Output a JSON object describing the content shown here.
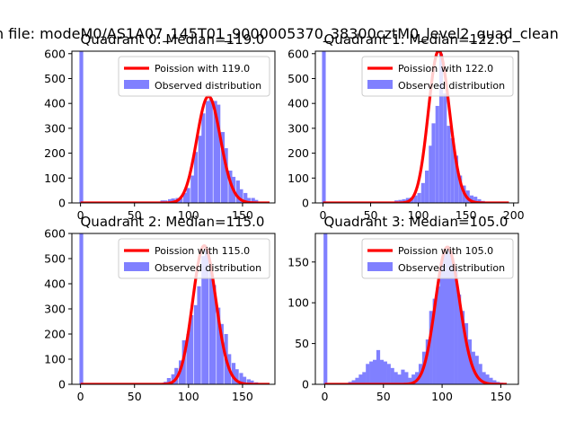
{
  "figure": {
    "suptitle": "n file: modeM0/AS1A07_145T01_9000005370_38300cztM0_level2_quad_clean"
  },
  "colors": {
    "hist": "#8080ff",
    "poisson": "#ff0000",
    "axis": "#000000"
  },
  "chart_data": [
    {
      "type": "bar",
      "title": "Quadrant 0: Median=119.0",
      "xlim": [
        -8,
        180
      ],
      "ylim": [
        0,
        610
      ],
      "xticks": [
        0,
        50,
        100,
        150
      ],
      "yticks": [
        0,
        100,
        200,
        300,
        400,
        500,
        600
      ],
      "legend_loc": "upper right",
      "legend": [
        "Poission with 119.0",
        "Observed distribution"
      ],
      "bin_width": 3.5,
      "bins": [
        [
          -1,
          612
        ],
        [
          63,
          2
        ],
        [
          70,
          5
        ],
        [
          74,
          10
        ],
        [
          77,
          10
        ],
        [
          81,
          15
        ],
        [
          84,
          18
        ],
        [
          88,
          20
        ],
        [
          91,
          18
        ],
        [
          95,
          40
        ],
        [
          98,
          60
        ],
        [
          102,
          110
        ],
        [
          105,
          205
        ],
        [
          109,
          270
        ],
        [
          112,
          360
        ],
        [
          116,
          410
        ],
        [
          119,
          420
        ],
        [
          123,
          410
        ],
        [
          126,
          395
        ],
        [
          130,
          285
        ],
        [
          133,
          220
        ],
        [
          137,
          130
        ],
        [
          140,
          105
        ],
        [
          144,
          90
        ],
        [
          147,
          55
        ],
        [
          151,
          40
        ],
        [
          154,
          20
        ],
        [
          158,
          20
        ],
        [
          161,
          12
        ],
        [
          165,
          5
        ],
        [
          168,
          2
        ],
        [
          172,
          1
        ]
      ],
      "poisson_mean": 119.0,
      "curve_xrange": [
        0,
        175
      ]
    },
    {
      "type": "bar",
      "title": "Quadrant 1: Median=122.0",
      "xlim": [
        -8,
        205
      ],
      "ylim": [
        0,
        610
      ],
      "xticks": [
        0,
        50,
        100,
        150,
        200
      ],
      "yticks": [
        0,
        100,
        200,
        300,
        400,
        500,
        600
      ],
      "legend_loc": "upper right",
      "legend": [
        "Poission with 122.0",
        "Observed distribution"
      ],
      "bin_width": 3.9,
      "bins": [
        [
          -1,
          612
        ],
        [
          71,
          5
        ],
        [
          75,
          10
        ],
        [
          79,
          12
        ],
        [
          83,
          15
        ],
        [
          87,
          20
        ],
        [
          91,
          22
        ],
        [
          95,
          30
        ],
        [
          99,
          40
        ],
        [
          103,
          80
        ],
        [
          107,
          130
        ],
        [
          111,
          230
        ],
        [
          114,
          320
        ],
        [
          118,
          390
        ],
        [
          122,
          600
        ],
        [
          126,
          440
        ],
        [
          130,
          310
        ],
        [
          134,
          260
        ],
        [
          138,
          190
        ],
        [
          142,
          110
        ],
        [
          146,
          70
        ],
        [
          150,
          50
        ],
        [
          154,
          30
        ],
        [
          158,
          25
        ],
        [
          162,
          15
        ],
        [
          166,
          8
        ],
        [
          170,
          5
        ],
        [
          174,
          3
        ],
        [
          178,
          2
        ],
        [
          185,
          1
        ],
        [
          193,
          1
        ]
      ],
      "poisson_mean": 122.0,
      "curve_xrange": [
        0,
        195
      ]
    },
    {
      "type": "bar",
      "title": "Quadrant 2: Median=115.0",
      "xlim": [
        -8,
        180
      ],
      "ylim": [
        0,
        600
      ],
      "xticks": [
        0,
        50,
        100,
        150
      ],
      "yticks": [
        0,
        100,
        200,
        300,
        400,
        500,
        600
      ],
      "legend_loc": "upper right",
      "legend": [
        "Poission with 115.0",
        "Observed distribution"
      ],
      "bin_width": 3.5,
      "bins": [
        [
          -1,
          612
        ],
        [
          73,
          5
        ],
        [
          77,
          10
        ],
        [
          80,
          25
        ],
        [
          84,
          40
        ],
        [
          87,
          65
        ],
        [
          91,
          95
        ],
        [
          94,
          175
        ],
        [
          98,
          200
        ],
        [
          101,
          275
        ],
        [
          105,
          315
        ],
        [
          108,
          390
        ],
        [
          112,
          510
        ],
        [
          115,
          540
        ],
        [
          119,
          450
        ],
        [
          122,
          395
        ],
        [
          126,
          305
        ],
        [
          129,
          240
        ],
        [
          133,
          200
        ],
        [
          136,
          120
        ],
        [
          140,
          85
        ],
        [
          143,
          60
        ],
        [
          147,
          45
        ],
        [
          150,
          30
        ],
        [
          154,
          20
        ],
        [
          157,
          15
        ],
        [
          161,
          8
        ],
        [
          164,
          5
        ],
        [
          168,
          3
        ],
        [
          171,
          2
        ],
        [
          175,
          1
        ]
      ],
      "poisson_mean": 115.0,
      "curve_xrange": [
        0,
        175
      ]
    },
    {
      "type": "bar",
      "title": "Quadrant 3: Median=105.0",
      "xlim": [
        -8,
        165
      ],
      "ylim": [
        0,
        185
      ],
      "xticks": [
        0,
        50,
        100,
        150
      ],
      "yticks": [
        0,
        50,
        100,
        150
      ],
      "legend_loc": "upper right",
      "legend": [
        "Poission with 105.0",
        "Observed distribution"
      ],
      "bin_width": 3.2,
      "bins": [
        [
          -1,
          185
        ],
        [
          20,
          3
        ],
        [
          23,
          5
        ],
        [
          26,
          8
        ],
        [
          29,
          12
        ],
        [
          32,
          15
        ],
        [
          35,
          25
        ],
        [
          38,
          28
        ],
        [
          41,
          30
        ],
        [
          44,
          42
        ],
        [
          47,
          30
        ],
        [
          50,
          28
        ],
        [
          53,
          25
        ],
        [
          56,
          20
        ],
        [
          59,
          15
        ],
        [
          62,
          12
        ],
        [
          65,
          18
        ],
        [
          68,
          15
        ],
        [
          71,
          8
        ],
        [
          74,
          12
        ],
        [
          77,
          15
        ],
        [
          80,
          25
        ],
        [
          83,
          40
        ],
        [
          86,
          55
        ],
        [
          89,
          90
        ],
        [
          92,
          105
        ],
        [
          95,
          120
        ],
        [
          98,
          150
        ],
        [
          101,
          160
        ],
        [
          104,
          165
        ],
        [
          107,
          155
        ],
        [
          110,
          140
        ],
        [
          113,
          110
        ],
        [
          116,
          90
        ],
        [
          119,
          75
        ],
        [
          122,
          55
        ],
        [
          125,
          40
        ],
        [
          128,
          35
        ],
        [
          131,
          25
        ],
        [
          134,
          15
        ],
        [
          137,
          12
        ],
        [
          140,
          8
        ],
        [
          143,
          5
        ],
        [
          146,
          3
        ],
        [
          149,
          2
        ],
        [
          152,
          1
        ]
      ],
      "poisson_mean": 105.0,
      "curve_xrange": [
        0,
        155
      ]
    }
  ]
}
